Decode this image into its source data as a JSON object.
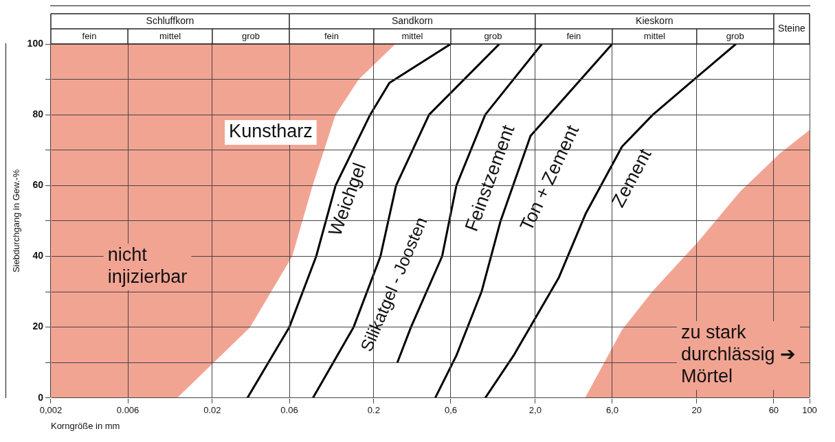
{
  "chart_data": {
    "type": "line",
    "xlabel": "Korngröße in mm",
    "ylabel": "Siebdurchgang in Gew.-%",
    "log": "x",
    "xlim": [
      0.002,
      100
    ],
    "ylim": [
      0,
      100
    ],
    "xticks": [
      {
        "value": 0.002,
        "label": "0,002"
      },
      {
        "value": 0.006,
        "label": "0.006"
      },
      {
        "value": 0.02,
        "label": "0.02"
      },
      {
        "value": 0.06,
        "label": "0.06"
      },
      {
        "value": 0.2,
        "label": "0.2"
      },
      {
        "value": 0.6,
        "label": "0,6"
      },
      {
        "value": 2,
        "label": "2,0"
      },
      {
        "value": 6,
        "label": "6,0"
      },
      {
        "value": 20,
        "label": "20"
      },
      {
        "value": 60,
        "label": "60"
      },
      {
        "value": 100,
        "label": "100"
      }
    ],
    "yticks": [
      0,
      {
        "value": 10,
        "label": null
      },
      20,
      {
        "value": 30,
        "label": null
      },
      40,
      {
        "value": 50,
        "label": null
      },
      60,
      {
        "value": 70,
        "label": null
      },
      80,
      {
        "value": 90,
        "label": null
      },
      100
    ],
    "grid": true,
    "legend": false,
    "marker": "none",
    "line_style": "solid",
    "series": [
      {
        "type": "area",
        "color": "#f2a493",
        "x": [
          0.002,
          0.002,
          0.012,
          0.034,
          0.062,
          0.083,
          0.115,
          0.16,
          0.27
        ],
        "values": [
          100,
          0,
          0,
          20,
          40,
          60,
          80,
          90,
          100
        ]
      },
      {
        "type": "line",
        "color": "#000000",
        "x": [
          0.033,
          0.06,
          0.088,
          0.116,
          0.19,
          0.25,
          0.6
        ],
        "values": [
          0,
          20,
          40,
          60,
          80,
          89,
          100
        ]
      },
      {
        "type": "line",
        "color": "#000000",
        "x": [
          0.084,
          0.15,
          0.22,
          0.275,
          0.44,
          1.2
        ],
        "values": [
          0,
          20,
          40,
          60,
          80,
          100
        ]
      },
      {
        "type": "line",
        "color": "#000000",
        "x": [
          0.28,
          0.34,
          0.53,
          0.65,
          0.98,
          2.2
        ],
        "values": [
          10,
          20,
          40,
          60,
          80,
          100
        ]
      },
      {
        "type": "line",
        "color": "#000000",
        "x": [
          0.48,
          0.65,
          0.93,
          1.22,
          1.87,
          2.8,
          6
        ],
        "values": [
          0,
          12,
          30,
          50,
          74,
          83,
          100
        ]
      },
      {
        "type": "line",
        "color": "#000000",
        "x": [
          0.98,
          1.47,
          2.8,
          4.1,
          6.9,
          10.7,
          20.5,
          35
        ],
        "values": [
          0,
          12,
          34,
          52,
          71,
          80,
          91,
          100
        ]
      },
      {
        "type": "area",
        "color": "#f2a493",
        "x": [
          4.1,
          6.9,
          10.7,
          20.5,
          37,
          66,
          100
        ],
        "values": [
          0,
          19,
          30,
          44,
          58,
          69,
          75.5
        ]
      }
    ],
    "annotations": [
      "Schluffkorn",
      "Sandkorn",
      "Kieskorn",
      "Steine",
      "fein",
      "mittel",
      "grob",
      "fein",
      "mittel",
      "grob",
      "fein",
      "mittel",
      "grob",
      "Kunstharz",
      "nicht injizierbar",
      "Weichgel",
      "Silikatgel - Joosten",
      "Feinstzement",
      "Ton + Zement",
      "Zement",
      "zu stark durchlässig ➔ Mörtel"
    ]
  }
}
